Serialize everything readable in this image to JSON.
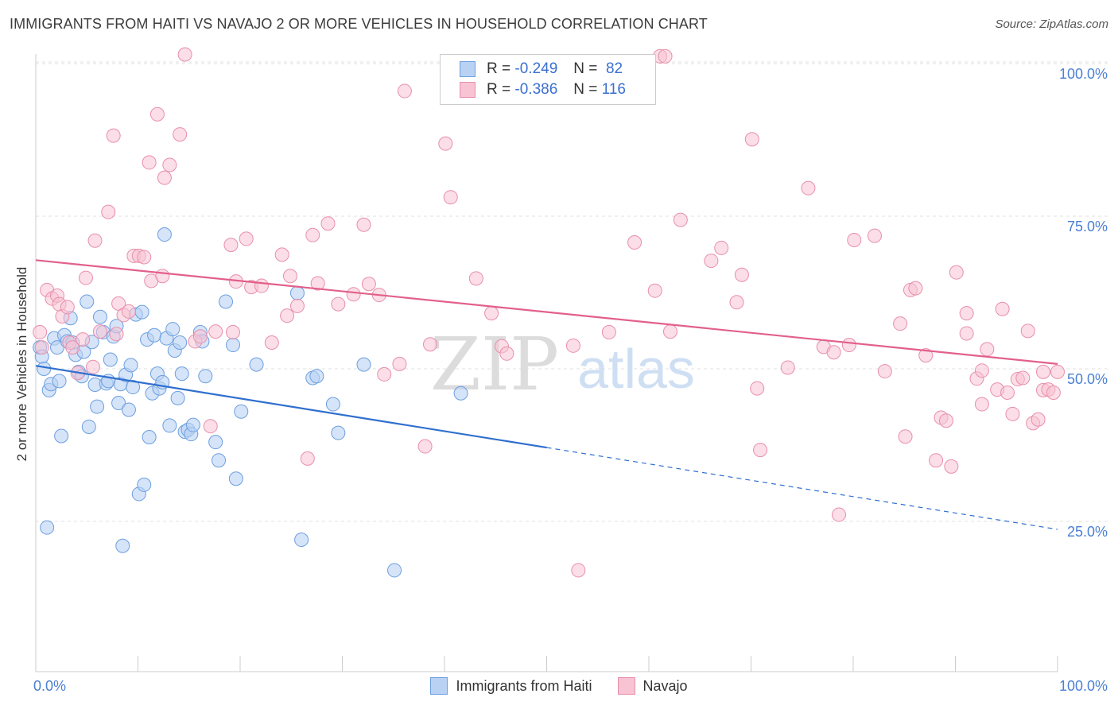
{
  "header": {
    "title": "IMMIGRANTS FROM HAITI VS NAVAJO 2 OR MORE VEHICLES IN HOUSEHOLD CORRELATION CHART",
    "source": "Source: ZipAtlas.com"
  },
  "legend": {
    "series1": {
      "r_label": "R =",
      "r_value": "-0.249",
      "n_label": "N =",
      "n_value": "82"
    },
    "series2": {
      "r_label": "R =",
      "r_value": "-0.386",
      "n_label": "N =",
      "n_value": "116"
    }
  },
  "watermark": {
    "zip": "ZIP",
    "atlas": "atlas"
  },
  "colors": {
    "blue_fill": "#b9d2f4",
    "blue_stroke": "#6d9fe0",
    "blue_line": "#2f6fce",
    "pink_fill": "#f8c3d3",
    "pink_stroke": "#e88fac",
    "pink_line": "#e2608a",
    "tick_label": "#4a7fd4",
    "grid": "#e2e2e2"
  },
  "chart_data": {
    "type": "scatter",
    "title": "IMMIGRANTS FROM HAITI VS NAVAJO 2 OR MORE VEHICLES IN HOUSEHOLD CORRELATION CHART",
    "xlabel": "",
    "ylabel": "2 or more Vehicles in Household",
    "xlim": [
      0,
      100
    ],
    "ylim": [
      0,
      103
    ],
    "x_tick_labels": [
      "0.0%",
      "100.0%"
    ],
    "y_ticks": [
      25,
      50,
      75,
      100
    ],
    "y_tick_labels": [
      "25.0%",
      "50.0%",
      "75.0%",
      "100.0%"
    ],
    "legend_position": "top-center",
    "series": [
      {
        "name": "Immigrants from Haiti",
        "r": -0.249,
        "n": 82,
        "trend": {
          "x0": 0,
          "y0": 50.5,
          "x1": 50,
          "y1": 37.1,
          "dash_to_x": 100,
          "dash_to_y": 23.7
        },
        "points": [
          [
            0.4,
            53.5
          ],
          [
            0.6,
            52
          ],
          [
            0.8,
            50
          ],
          [
            1.1,
            24
          ],
          [
            1.3,
            46.5
          ],
          [
            1.5,
            47.5
          ],
          [
            1.8,
            55
          ],
          [
            2.1,
            53.5
          ],
          [
            2.3,
            48
          ],
          [
            2.5,
            39
          ],
          [
            2.8,
            55.5
          ],
          [
            3.1,
            54.5
          ],
          [
            3.4,
            58.3
          ],
          [
            3.6,
            54.3
          ],
          [
            3.9,
            52.3
          ],
          [
            4.2,
            49.5
          ],
          [
            4.5,
            48.8
          ],
          [
            4.7,
            52.8
          ],
          [
            5.0,
            61
          ],
          [
            5.2,
            40.5
          ],
          [
            5.5,
            54.4
          ],
          [
            5.8,
            47.4
          ],
          [
            6.0,
            43.8
          ],
          [
            6.3,
            58.5
          ],
          [
            6.6,
            56
          ],
          [
            6.9,
            47.6
          ],
          [
            7.1,
            48
          ],
          [
            7.3,
            51.5
          ],
          [
            7.6,
            55.3
          ],
          [
            7.9,
            57
          ],
          [
            8.1,
            44.4
          ],
          [
            8.3,
            47.5
          ],
          [
            8.5,
            21
          ],
          [
            8.8,
            49
          ],
          [
            9.1,
            43.3
          ],
          [
            9.3,
            50.6
          ],
          [
            9.5,
            47
          ],
          [
            9.8,
            58.9
          ],
          [
            10.1,
            29.5
          ],
          [
            10.4,
            59.3
          ],
          [
            10.6,
            31
          ],
          [
            10.9,
            54.8
          ],
          [
            11.1,
            38.8
          ],
          [
            11.4,
            46
          ],
          [
            11.6,
            55.5
          ],
          [
            11.9,
            49.2
          ],
          [
            12.1,
            46.8
          ],
          [
            12.4,
            47.8
          ],
          [
            12.6,
            72
          ],
          [
            12.8,
            55
          ],
          [
            13.1,
            40.7
          ],
          [
            13.4,
            56.5
          ],
          [
            13.6,
            53
          ],
          [
            13.9,
            45.2
          ],
          [
            14.1,
            54.3
          ],
          [
            14.3,
            49.2
          ],
          [
            14.6,
            39.7
          ],
          [
            14.9,
            40
          ],
          [
            15.2,
            39.3
          ],
          [
            15.4,
            40.8
          ],
          [
            16.1,
            56
          ],
          [
            16.3,
            54.5
          ],
          [
            16.6,
            48.8
          ],
          [
            17.6,
            38
          ],
          [
            17.9,
            35
          ],
          [
            18.6,
            61
          ],
          [
            19.3,
            53.9
          ],
          [
            19.6,
            32
          ],
          [
            20.1,
            43
          ],
          [
            21.6,
            50.7
          ],
          [
            25.6,
            62.4
          ],
          [
            26.0,
            22
          ],
          [
            27.1,
            48.5
          ],
          [
            27.5,
            48.8
          ],
          [
            29.1,
            44.2
          ],
          [
            29.6,
            39.5
          ],
          [
            32.1,
            50.7
          ],
          [
            35.1,
            17
          ],
          [
            41.6,
            46
          ]
        ]
      },
      {
        "name": "Navajo",
        "r": -0.386,
        "n": 116,
        "trend": {
          "x0": 0,
          "y0": 67.8,
          "x1": 100,
          "y1": 50.8
        },
        "points": [
          [
            0.4,
            56
          ],
          [
            0.6,
            53.5
          ],
          [
            1.1,
            62.9
          ],
          [
            1.6,
            61.5
          ],
          [
            2.1,
            62
          ],
          [
            2.3,
            60.6
          ],
          [
            2.6,
            58.6
          ],
          [
            3.1,
            60.1
          ],
          [
            3.3,
            54.3
          ],
          [
            3.6,
            53.5
          ],
          [
            4.1,
            49.3
          ],
          [
            4.6,
            54.8
          ],
          [
            4.9,
            64.9
          ],
          [
            5.6,
            50.3
          ],
          [
            5.8,
            71
          ],
          [
            6.3,
            56.1
          ],
          [
            7.1,
            75.7
          ],
          [
            7.6,
            88.2
          ],
          [
            7.9,
            55.7
          ],
          [
            8.1,
            60.7
          ],
          [
            8.6,
            58.8
          ],
          [
            9.1,
            59.4
          ],
          [
            9.6,
            68.5
          ],
          [
            10.1,
            68.5
          ],
          [
            10.6,
            68.3
          ],
          [
            11.1,
            83.8
          ],
          [
            11.3,
            64.4
          ],
          [
            11.9,
            91.7
          ],
          [
            12.4,
            65.2
          ],
          [
            12.6,
            81.3
          ],
          [
            13.1,
            83.4
          ],
          [
            14.1,
            88.4
          ],
          [
            14.6,
            101.5
          ],
          [
            15.6,
            54.5
          ],
          [
            16.1,
            55.3
          ],
          [
            17.1,
            40.6
          ],
          [
            17.6,
            56.1
          ],
          [
            19.1,
            70.3
          ],
          [
            19.3,
            56
          ],
          [
            19.6,
            64.3
          ],
          [
            20.6,
            71.3
          ],
          [
            21.1,
            63.4
          ],
          [
            22.1,
            63.6
          ],
          [
            23.1,
            54.3
          ],
          [
            24.1,
            68.7
          ],
          [
            24.6,
            58.7
          ],
          [
            24.9,
            65.2
          ],
          [
            25.6,
            60.3
          ],
          [
            26.6,
            35.3
          ],
          [
            27.1,
            71.9
          ],
          [
            27.6,
            64
          ],
          [
            28.6,
            73.8
          ],
          [
            29.6,
            60.6
          ],
          [
            31.1,
            62.2
          ],
          [
            32.1,
            73.6
          ],
          [
            32.6,
            63.9
          ],
          [
            33.6,
            62.1
          ],
          [
            34.1,
            49.1
          ],
          [
            35.6,
            50.8
          ],
          [
            36.1,
            95.5
          ],
          [
            38.1,
            37.3
          ],
          [
            38.6,
            54
          ],
          [
            40.1,
            86.9
          ],
          [
            40.6,
            78.1
          ],
          [
            43.1,
            64.8
          ],
          [
            44.6,
            59.1
          ],
          [
            45.6,
            53.7
          ],
          [
            46.1,
            52.5
          ],
          [
            52.6,
            53.8
          ],
          [
            53.1,
            17
          ],
          [
            56.1,
            56
          ],
          [
            58.6,
            70.7
          ],
          [
            60.6,
            62.8
          ],
          [
            61.1,
            101.2
          ],
          [
            61.6,
            101.2
          ],
          [
            62.1,
            56.1
          ],
          [
            63.1,
            74.4
          ],
          [
            66.1,
            67.7
          ],
          [
            67.1,
            69.8
          ],
          [
            68.6,
            60.9
          ],
          [
            69.1,
            65.4
          ],
          [
            70.1,
            87.6
          ],
          [
            70.6,
            46.8
          ],
          [
            70.9,
            36.7
          ],
          [
            73.6,
            50.2
          ],
          [
            75.6,
            79.6
          ],
          [
            77.1,
            53.6
          ],
          [
            78.1,
            52.7
          ],
          [
            78.6,
            26.1
          ],
          [
            79.6,
            53.9
          ],
          [
            80.1,
            71.1
          ],
          [
            82.1,
            71.8
          ],
          [
            83.1,
            49.6
          ],
          [
            84.6,
            57.4
          ],
          [
            85.1,
            38.9
          ],
          [
            85.6,
            62.9
          ],
          [
            86.1,
            63.2
          ],
          [
            87.1,
            52.2
          ],
          [
            88.1,
            35
          ],
          [
            88.6,
            42
          ],
          [
            89.1,
            41.5
          ],
          [
            89.6,
            34
          ],
          [
            90.1,
            65.8
          ],
          [
            91.1,
            59.1
          ],
          [
            91.1,
            55.8
          ],
          [
            92.1,
            48.4
          ],
          [
            92.6,
            49.7
          ],
          [
            92.6,
            44.2
          ],
          [
            93.1,
            53.2
          ],
          [
            94.1,
            46.6
          ],
          [
            94.6,
            59.8
          ],
          [
            95.1,
            46.1
          ],
          [
            95.6,
            42.6
          ],
          [
            96.1,
            48.3
          ],
          [
            96.6,
            48.5
          ],
          [
            97.1,
            56.2
          ],
          [
            97.6,
            41.1
          ],
          [
            98.1,
            41.7
          ],
          [
            98.6,
            49.5
          ],
          [
            98.6,
            46.5
          ],
          [
            99.1,
            46.6
          ],
          [
            99.6,
            46.1
          ],
          [
            100.0,
            49.5
          ]
        ]
      }
    ]
  },
  "bottom_legend": {
    "series1": "Immigrants from Haiti",
    "series2": "Navajo"
  }
}
